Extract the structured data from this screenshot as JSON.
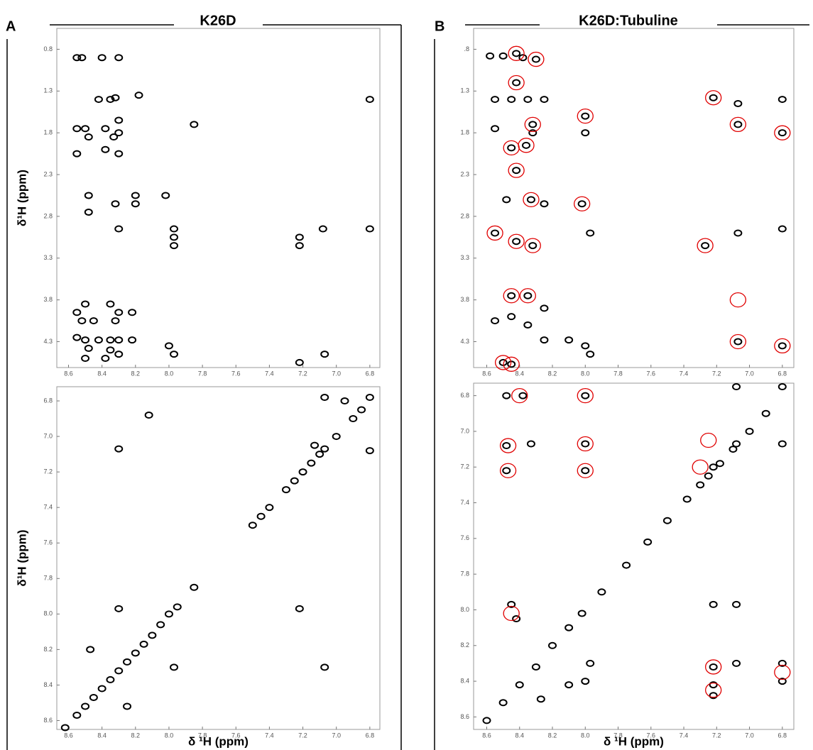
{
  "panels": [
    {
      "label": "A",
      "title": "K26D"
    },
    {
      "label": "B",
      "title": "K26D:Tubuline"
    }
  ],
  "chart_data": [
    {
      "type": "scatter",
      "y_label": "δ¹H (ppm)",
      "color": "#000000",
      "xlim": [
        8.67,
        6.74
      ],
      "ylim": [
        0.55,
        4.61
      ],
      "xticks": [
        8.6,
        8.4,
        8.2,
        {
          "value": 8,
          "label": "8.0"
        },
        7.8,
        7.6,
        7.4,
        7.2,
        {
          "value": 7,
          "label": "7.0"
        },
        6.8
      ],
      "yticks": [
        0.8,
        1.3,
        1.8,
        2.3,
        2.8,
        3.3,
        3.8,
        4.3
      ],
      "x": [
        8.55,
        8.52,
        8.4,
        8.3,
        8.35,
        8.42,
        8.32,
        8.18,
        6.8,
        8.55,
        8.5,
        8.38,
        8.3,
        8.3,
        8.48,
        8.33,
        8.55,
        8.3,
        8.38,
        7.85,
        8.48,
        8.48,
        8.32,
        8.2,
        8.2,
        8.02,
        8.3,
        7.97,
        7.97,
        7.97,
        7.22,
        7.22,
        7.08,
        6.8,
        8.55,
        8.5,
        8.35,
        8.3,
        8.22,
        8.52,
        8.45,
        8.32,
        8.55,
        8.5,
        8.42,
        8.35,
        8.3,
        8.22,
        8.48,
        8.35,
        8.3,
        8.0,
        7.97,
        7.07,
        7.22,
        8.5,
        8.38
      ],
      "values": [
        0.9,
        0.9,
        0.9,
        0.9,
        1.4,
        1.4,
        1.38,
        1.35,
        1.4,
        1.75,
        1.75,
        1.75,
        1.65,
        1.8,
        1.85,
        1.85,
        2.05,
        2.05,
        2.0,
        1.7,
        2.55,
        2.75,
        2.65,
        2.55,
        2.65,
        2.55,
        2.95,
        2.95,
        3.05,
        3.15,
        3.05,
        3.15,
        2.95,
        2.95,
        3.95,
        3.85,
        3.85,
        3.95,
        3.95,
        4.05,
        4.05,
        4.05,
        4.25,
        4.28,
        4.28,
        4.28,
        4.28,
        4.28,
        4.38,
        4.4,
        4.45,
        4.35,
        4.45,
        4.45,
        4.55,
        4.5,
        4.5
      ]
    },
    {
      "type": "scatter",
      "x_label": "δ ¹H (ppm)",
      "y_label": "δ¹H (ppm)",
      "color": "#000000",
      "xlim": [
        8.67,
        6.74
      ],
      "ylim": [
        6.72,
        8.65
      ],
      "xticks": [
        8.6,
        8.4,
        8.2,
        {
          "value": 8,
          "label": "8.0"
        },
        7.8,
        7.6,
        7.4,
        7.2,
        {
          "value": 7,
          "label": "7.0"
        },
        6.8
      ],
      "yticks": [
        6.8,
        {
          "value": 7,
          "label": "7.0"
        },
        7.2,
        7.4,
        7.6,
        7.8,
        {
          "value": 8,
          "label": "8.0"
        },
        8.2,
        8.4,
        8.6
      ],
      "x": [
        8.12,
        8.3,
        7.07,
        6.8,
        6.95,
        7.07,
        6.8,
        7.13,
        8.3,
        7.22,
        7.97,
        7.07,
        8.25,
        8.47,
        8.62,
        8.55,
        8.5,
        8.45,
        8.4,
        8.35,
        8.3,
        8.25,
        8.2,
        8.15,
        8.1,
        8.05,
        8.0,
        7.95,
        7.85,
        7.5,
        7.45,
        7.4,
        7.3,
        7.25,
        7.2,
        7.15,
        7.1,
        7.0,
        6.9,
        6.85
      ],
      "values": [
        6.88,
        7.07,
        6.78,
        6.78,
        6.8,
        7.07,
        7.08,
        7.05,
        7.97,
        7.97,
        8.3,
        8.3,
        8.52,
        8.2,
        8.64,
        8.57,
        8.52,
        8.47,
        8.42,
        8.37,
        8.32,
        8.27,
        8.22,
        8.17,
        8.12,
        8.06,
        8.0,
        7.96,
        7.85,
        7.5,
        7.45,
        7.4,
        7.3,
        7.25,
        7.2,
        7.15,
        7.1,
        7.0,
        6.9,
        6.85
      ]
    },
    {
      "type": "scatter",
      "color": "#000000",
      "circle_color": "#e00000",
      "xlim": [
        8.68,
        6.73
      ],
      "ylim": [
        0.55,
        4.61
      ],
      "xticks": [
        8.6,
        8.4,
        8.2,
        {
          "value": 8,
          "label": "8.0"
        },
        7.8,
        7.6,
        7.4,
        7.2,
        {
          "value": 7,
          "label": "7.0"
        },
        6.8
      ],
      "yticks": [
        {
          "value": 0.8,
          "label": ".8"
        },
        1.3,
        1.8,
        2.3,
        2.8,
        3.3,
        3.8,
        4.3
      ],
      "x": [
        8.58,
        8.5,
        8.42,
        8.38,
        8.3,
        8.42,
        8.55,
        8.45,
        8.35,
        8.32,
        8.25,
        8.0,
        7.22,
        7.07,
        6.8,
        8.55,
        8.45,
        8.36,
        8.32,
        8.0,
        7.07,
        6.8,
        8.42,
        8.48,
        8.33,
        8.25,
        8.02,
        8.55,
        8.42,
        8.32,
        7.97,
        7.27,
        7.07,
        6.8,
        8.45,
        8.35,
        8.25,
        8.55,
        8.45,
        8.35,
        8.25,
        8.1,
        8.0,
        7.97,
        7.07,
        6.8,
        8.5,
        8.45
      ],
      "values": [
        0.88,
        0.88,
        0.85,
        0.9,
        0.92,
        1.2,
        1.4,
        1.4,
        1.4,
        1.7,
        1.4,
        1.6,
        1.38,
        1.45,
        1.4,
        1.75,
        1.98,
        1.95,
        1.8,
        1.8,
        1.7,
        1.8,
        2.25,
        2.6,
        2.6,
        2.65,
        2.65,
        3.0,
        3.1,
        3.15,
        3.0,
        3.15,
        3.0,
        2.95,
        3.75,
        3.75,
        3.9,
        4.05,
        4.0,
        4.1,
        4.28,
        4.28,
        4.35,
        4.45,
        4.3,
        4.35,
        4.55,
        4.57
      ],
      "circled": {
        "x": [
          8.42,
          8.3,
          8.42,
          8.32,
          8.0,
          8.45,
          8.36,
          8.42,
          8.33,
          8.02,
          8.55,
          8.42,
          8.32,
          8.45,
          8.35,
          7.22,
          7.07,
          6.8,
          7.27,
          7.07,
          7.07,
          6.8,
          8.5,
          8.45
        ],
        "values": [
          0.85,
          0.92,
          1.2,
          1.7,
          1.6,
          1.98,
          1.95,
          2.25,
          2.6,
          2.65,
          3.0,
          3.1,
          3.15,
          3.75,
          3.75,
          1.38,
          1.7,
          1.8,
          3.15,
          3.8,
          4.3,
          4.35,
          4.55,
          4.57
        ]
      }
    },
    {
      "type": "scatter",
      "x_label": "δ ¹H (ppm)",
      "color": "#000000",
      "circle_color": "#e00000",
      "xlim": [
        8.68,
        6.73
      ],
      "ylim": [
        6.73,
        8.67
      ],
      "xticks": [
        8.6,
        8.4,
        8.2,
        {
          "value": 8,
          "label": "8.0"
        },
        7.8,
        7.6,
        7.4,
        7.2,
        {
          "value": 7,
          "label": "7.0"
        },
        6.8
      ],
      "yticks": [
        6.8,
        {
          "value": 7,
          "label": "7.0"
        },
        7.2,
        7.4,
        7.6,
        7.8,
        {
          "value": 8,
          "label": "8.0"
        },
        8.2,
        8.4,
        8.6
      ],
      "x": [
        8.48,
        8.38,
        8.0,
        7.08,
        6.8,
        8.48,
        8.48,
        8.33,
        8.0,
        8.0,
        7.22,
        7.08,
        6.8,
        7.22,
        7.08,
        8.45,
        8.42,
        7.22,
        7.22,
        7.22,
        7.08,
        6.8,
        6.8,
        7.97,
        8.0,
        8.1,
        8.27,
        8.6,
        8.5,
        8.4,
        8.3,
        8.2,
        8.1,
        8.02,
        7.9,
        7.75,
        7.62,
        7.5,
        7.38,
        7.3,
        7.25,
        7.18,
        7.1,
        7.0,
        6.9
      ],
      "values": [
        6.8,
        6.8,
        6.8,
        6.75,
        6.75,
        7.08,
        7.22,
        7.07,
        7.07,
        7.22,
        7.2,
        7.07,
        7.07,
        7.97,
        7.97,
        7.97,
        8.05,
        8.32,
        8.42,
        8.48,
        8.3,
        8.3,
        8.4,
        8.3,
        8.4,
        8.42,
        8.5,
        8.62,
        8.52,
        8.42,
        8.32,
        8.2,
        8.1,
        8.02,
        7.9,
        7.75,
        7.62,
        7.5,
        7.38,
        7.3,
        7.25,
        7.18,
        7.1,
        7.0,
        6.9
      ],
      "circled": {
        "x": [
          8.4,
          8.0,
          8.47,
          8.47,
          8.0,
          8.0,
          7.25,
          7.3,
          8.45,
          7.22,
          7.22,
          6.8
        ],
        "values": [
          6.8,
          6.8,
          7.08,
          7.22,
          7.07,
          7.22,
          7.05,
          7.2,
          8.02,
          8.32,
          8.45,
          8.35
        ]
      }
    }
  ]
}
